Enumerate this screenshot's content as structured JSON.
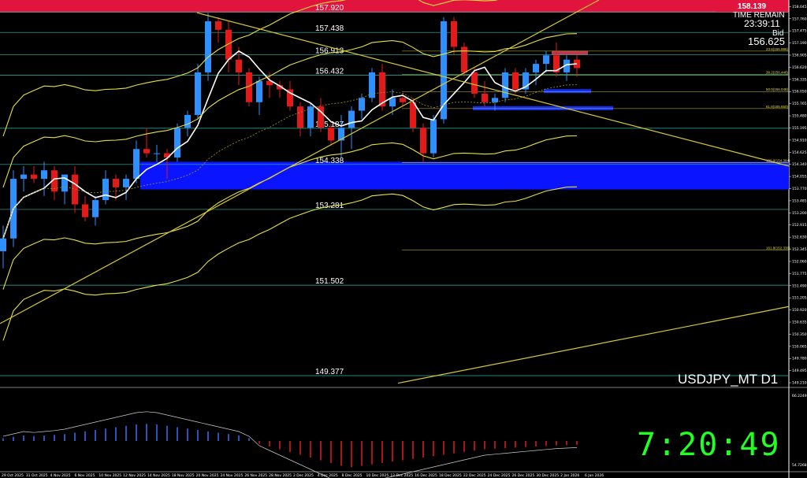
{
  "window": {
    "symbol_label": "USDJPY_MT D1",
    "time_remain_label": "TIME REMAIN",
    "time_remain_value": "23:39:11",
    "bid_label": "Bid",
    "bid_value": "156.625",
    "clock": "7:20:49",
    "top_price": "158.139"
  },
  "chart_data": {
    "type": "candlestick",
    "title": "USDJPY_MT D1",
    "ylim": [
      149.1,
      158.2
    ],
    "x_tick_labels": [
      "29 Oct 2025",
      "31 Oct 2025",
      "4 Nov 2025",
      "6 Nov 2025",
      "10 Nov 2025",
      "12 Nov 2025",
      "14 Nov 2025",
      "18 Nov 2025",
      "20 Nov 2025",
      "24 Nov 2025",
      "26 Nov 2025",
      "28 Nov 2025",
      "2 Dec 2025",
      "4 Dec 2025",
      "8 Dec 2025",
      "10 Dec 2025",
      "12 Dec 2025",
      "16 Dec 2025",
      "18 Dec 2025",
      "22 Dec 2025",
      "24 Dec 2025",
      "26 Dec 2025",
      "30 Dec 2025",
      "2 Jan 2026",
      "6 Jan 2026"
    ],
    "y_tick_labels": [
      "158.045",
      "157.760",
      "157.475",
      "157.190",
      "156.905",
      "156.620",
      "156.335",
      "156.050",
      "155.765",
      "155.480",
      "155.195",
      "154.910",
      "154.625",
      "154.340",
      "154.055",
      "153.770",
      "153.485",
      "153.200",
      "152.915",
      "152.630",
      "152.345",
      "152.060",
      "151.775",
      "151.490",
      "151.205",
      "150.920",
      "150.635",
      "150.350",
      "150.065",
      "149.780",
      "149.495",
      "149.210"
    ],
    "price_levels": [
      {
        "value": 157.92,
        "label": "157.920"
      },
      {
        "value": 157.438,
        "label": "157.438"
      },
      {
        "value": 156.913,
        "label": "156.913"
      },
      {
        "value": 156.432,
        "label": "156.432"
      },
      {
        "value": 155.187,
        "label": "155.187"
      },
      {
        "value": 154.338,
        "label": "154.338"
      },
      {
        "value": 153.281,
        "label": "153.281"
      },
      {
        "value": 151.502,
        "label": "151.502"
      },
      {
        "value": 149.377,
        "label": "149.377"
      }
    ],
    "fib_levels": [
      {
        "value": 157.0,
        "label": "23.6(156.996)"
      },
      {
        "value": 156.45,
        "label": "38.2(156.446)"
      },
      {
        "value": 156.05,
        "label": "50.0(156.048)"
      },
      {
        "value": 155.65,
        "label": "61.8(155.650)"
      },
      {
        "value": 154.38,
        "label": "100.0(154.384)"
      },
      {
        "value": 152.33,
        "label": "161.8(152.336)"
      }
    ],
    "candles": [
      {
        "o": 152.3,
        "h": 152.9,
        "l": 151.9,
        "c": 152.6
      },
      {
        "o": 152.6,
        "h": 154.2,
        "l": 152.4,
        "c": 154.0
      },
      {
        "o": 154.0,
        "h": 154.3,
        "l": 153.7,
        "c": 154.1
      },
      {
        "o": 154.1,
        "h": 154.3,
        "l": 153.9,
        "c": 154.0
      },
      {
        "o": 154.0,
        "h": 154.4,
        "l": 153.6,
        "c": 154.2
      },
      {
        "o": 154.2,
        "h": 154.3,
        "l": 153.5,
        "c": 153.7
      },
      {
        "o": 153.7,
        "h": 154.1,
        "l": 153.4,
        "c": 154.1
      },
      {
        "o": 154.1,
        "h": 154.3,
        "l": 153.2,
        "c": 153.4
      },
      {
        "o": 153.4,
        "h": 153.6,
        "l": 153.0,
        "c": 153.1
      },
      {
        "o": 153.1,
        "h": 153.6,
        "l": 152.9,
        "c": 153.5
      },
      {
        "o": 153.5,
        "h": 154.2,
        "l": 153.4,
        "c": 154.0
      },
      {
        "o": 154.0,
        "h": 154.1,
        "l": 153.5,
        "c": 153.8
      },
      {
        "o": 153.8,
        "h": 154.1,
        "l": 153.5,
        "c": 154.0
      },
      {
        "o": 154.0,
        "h": 154.9,
        "l": 153.9,
        "c": 154.7
      },
      {
        "o": 154.7,
        "h": 155.2,
        "l": 154.5,
        "c": 154.6
      },
      {
        "o": 154.6,
        "h": 154.8,
        "l": 154.4,
        "c": 154.6
      },
      {
        "o": 154.6,
        "h": 154.7,
        "l": 154.0,
        "c": 154.5
      },
      {
        "o": 154.5,
        "h": 155.3,
        "l": 154.4,
        "c": 155.2
      },
      {
        "o": 155.2,
        "h": 155.6,
        "l": 155.0,
        "c": 155.5
      },
      {
        "o": 155.5,
        "h": 156.7,
        "l": 155.4,
        "c": 156.5
      },
      {
        "o": 156.5,
        "h": 157.9,
        "l": 156.3,
        "c": 157.7
      },
      {
        "o": 157.7,
        "h": 157.8,
        "l": 157.2,
        "c": 157.5
      },
      {
        "o": 157.5,
        "h": 157.7,
        "l": 156.5,
        "c": 156.8
      },
      {
        "o": 156.8,
        "h": 157.1,
        "l": 156.2,
        "c": 156.5
      },
      {
        "o": 156.5,
        "h": 156.6,
        "l": 155.7,
        "c": 155.8
      },
      {
        "o": 155.8,
        "h": 156.4,
        "l": 155.5,
        "c": 156.3
      },
      {
        "o": 156.3,
        "h": 156.5,
        "l": 155.9,
        "c": 156.2
      },
      {
        "o": 156.2,
        "h": 156.3,
        "l": 155.9,
        "c": 156.1
      },
      {
        "o": 156.1,
        "h": 156.3,
        "l": 155.6,
        "c": 155.7
      },
      {
        "o": 155.7,
        "h": 155.8,
        "l": 155.0,
        "c": 155.2
      },
      {
        "o": 155.2,
        "h": 155.8,
        "l": 155.0,
        "c": 155.7
      },
      {
        "o": 155.7,
        "h": 155.9,
        "l": 155.1,
        "c": 155.2
      },
      {
        "o": 155.2,
        "h": 155.3,
        "l": 154.8,
        "c": 154.9
      },
      {
        "o": 154.9,
        "h": 155.5,
        "l": 154.5,
        "c": 155.2
      },
      {
        "o": 155.2,
        "h": 155.7,
        "l": 154.7,
        "c": 155.6
      },
      {
        "o": 155.6,
        "h": 156.0,
        "l": 155.4,
        "c": 155.9
      },
      {
        "o": 155.9,
        "h": 156.6,
        "l": 155.8,
        "c": 156.5
      },
      {
        "o": 156.5,
        "h": 156.7,
        "l": 155.6,
        "c": 155.7
      },
      {
        "o": 155.7,
        "h": 156.1,
        "l": 155.5,
        "c": 155.9
      },
      {
        "o": 155.9,
        "h": 156.0,
        "l": 155.7,
        "c": 155.8
      },
      {
        "o": 155.8,
        "h": 155.9,
        "l": 155.1,
        "c": 155.2
      },
      {
        "o": 155.2,
        "h": 155.3,
        "l": 154.4,
        "c": 154.6
      },
      {
        "o": 154.6,
        "h": 155.5,
        "l": 154.5,
        "c": 155.4
      },
      {
        "o": 155.4,
        "h": 157.8,
        "l": 155.3,
        "c": 157.7
      },
      {
        "o": 157.7,
        "h": 157.8,
        "l": 156.9,
        "c": 157.1
      },
      {
        "o": 157.1,
        "h": 157.2,
        "l": 156.4,
        "c": 156.5
      },
      {
        "o": 156.5,
        "h": 156.6,
        "l": 155.9,
        "c": 156.0
      },
      {
        "o": 156.0,
        "h": 156.3,
        "l": 155.7,
        "c": 155.8
      },
      {
        "o": 155.8,
        "h": 156.0,
        "l": 155.6,
        "c": 155.9
      },
      {
        "o": 155.9,
        "h": 156.6,
        "l": 155.8,
        "c": 156.5
      },
      {
        "o": 156.5,
        "h": 156.6,
        "l": 156.0,
        "c": 156.1
      },
      {
        "o": 156.1,
        "h": 156.6,
        "l": 156.0,
        "c": 156.5
      },
      {
        "o": 156.5,
        "h": 156.8,
        "l": 156.2,
        "c": 156.7
      },
      {
        "o": 156.7,
        "h": 157.0,
        "l": 156.5,
        "c": 156.9
      },
      {
        "o": 156.9,
        "h": 157.2,
        "l": 156.4,
        "c": 156.5
      },
      {
        "o": 156.5,
        "h": 156.9,
        "l": 156.3,
        "c": 156.8
      },
      {
        "o": 156.8,
        "h": 156.9,
        "l": 156.4,
        "c": 156.6
      }
    ],
    "oscillator": {
      "ylabels": [
        "66.2249",
        "54.7268"
      ],
      "histogram": [
        0.1,
        0.15,
        0.2,
        0.18,
        0.2,
        0.22,
        0.25,
        0.3,
        0.35,
        0.4,
        0.45,
        0.5,
        0.55,
        0.6,
        0.62,
        0.6,
        0.55,
        0.5,
        0.45,
        0.4,
        0.35,
        0.3,
        0.25,
        0.2,
        0.1,
        -0.1,
        -0.2,
        -0.3,
        -0.4,
        -0.5,
        -0.6,
        -0.7,
        -0.8,
        -0.9,
        -0.95,
        -0.9,
        -0.85,
        -0.8,
        -0.75,
        -0.7,
        -0.65,
        -0.6,
        -0.55,
        -0.5,
        -0.45,
        -0.4,
        -0.35,
        -0.3,
        -0.28,
        -0.26,
        -0.24,
        -0.22,
        -0.2,
        -0.18,
        -0.16,
        -0.15,
        -0.14
      ]
    }
  }
}
